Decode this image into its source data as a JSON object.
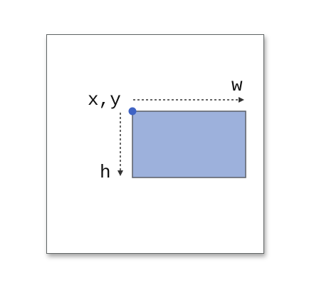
{
  "labels": {
    "origin": "x,y",
    "width": "w",
    "height": "h"
  },
  "colors": {
    "rect_fill": "#9db1dc",
    "rect_stroke": "#5b5f66",
    "origin_point": "#3f63c4",
    "arrow": "#333333",
    "frame_border": "#5f6464"
  }
}
